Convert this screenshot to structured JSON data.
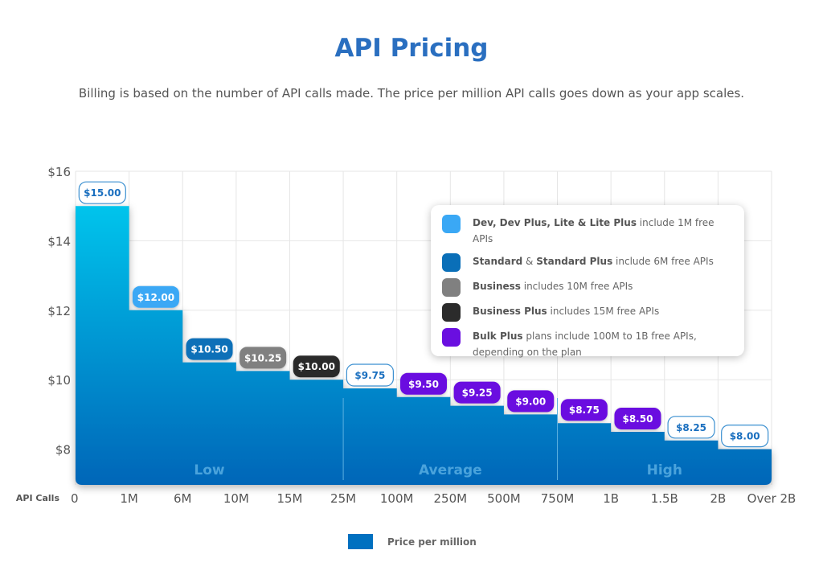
{
  "header": {
    "title": "API Pricing",
    "subtitle": "Billing is based on the number of API calls made. The price per million API calls goes down as your app scales."
  },
  "plan_legend": [
    {
      "bold": "Dev, Dev Plus, Lite & Lite Plus",
      "bold2": "",
      "mid": "",
      "rest": " include 1M free APIs",
      "color": "#3aa8f5"
    },
    {
      "bold": "Standard",
      "mid": " & ",
      "bold2": "Standard Plus",
      "rest": " include 6M free APIs",
      "color": "#0a6fb8"
    },
    {
      "bold": "Business",
      "bold2": "",
      "mid": "",
      "rest": " includes 10M free APIs",
      "color": "#808080"
    },
    {
      "bold": "Business Plus",
      "bold2": "",
      "mid": "",
      "rest": " includes 15M free APIs",
      "color": "#2b2b2b"
    },
    {
      "bold": "Bulk Plus",
      "bold2": "",
      "mid": "",
      "rest": " plans include 100M to 1B free APIs, depending on the plan",
      "color": "#6a0fe0"
    }
  ],
  "chart_data": {
    "type": "area",
    "step": true,
    "title": "",
    "xlabel": "API Calls",
    "ylabel": "",
    "ylim": [
      7,
      16
    ],
    "y_ticks": [
      "$8",
      "$10",
      "$12",
      "$14",
      "$16"
    ],
    "y_tick_values": [
      8,
      10,
      12,
      14,
      16
    ],
    "x_ticks": [
      "0",
      "1M",
      "6M",
      "10M",
      "15M",
      "25M",
      "100M",
      "250M",
      "500M",
      "750M",
      "1B",
      "1.5B",
      "2B",
      "Over 2B"
    ],
    "grid": true,
    "series": [
      {
        "name": "Price per million",
        "color": "#0070c0",
        "values": [
          15.0,
          12.0,
          10.5,
          10.25,
          10.0,
          9.75,
          9.5,
          9.25,
          9.0,
          8.75,
          8.5,
          8.25,
          8.0
        ],
        "labels": [
          "$15.00",
          "$12.00",
          "$10.50",
          "$10.25",
          "$10.00",
          "$9.75",
          "$9.50",
          "$9.25",
          "$9.00",
          "$8.75",
          "$8.50",
          "$8.25",
          "$8.00"
        ],
        "label_styles": [
          "outline",
          "#3aa8f5",
          "#0a6fb8",
          "#808080",
          "#2b2b2b",
          "outline",
          "#6a0fe0",
          "#6a0fe0",
          "#6a0fe0",
          "#6a0fe0",
          "#6a0fe0",
          "outline",
          "outline"
        ]
      }
    ],
    "bands": [
      {
        "label": "Low",
        "from": 0,
        "to": 5
      },
      {
        "label": "Average",
        "from": 5,
        "to": 9
      },
      {
        "label": "High",
        "from": 9,
        "to": 13
      }
    ],
    "legend_position": "bottom"
  }
}
